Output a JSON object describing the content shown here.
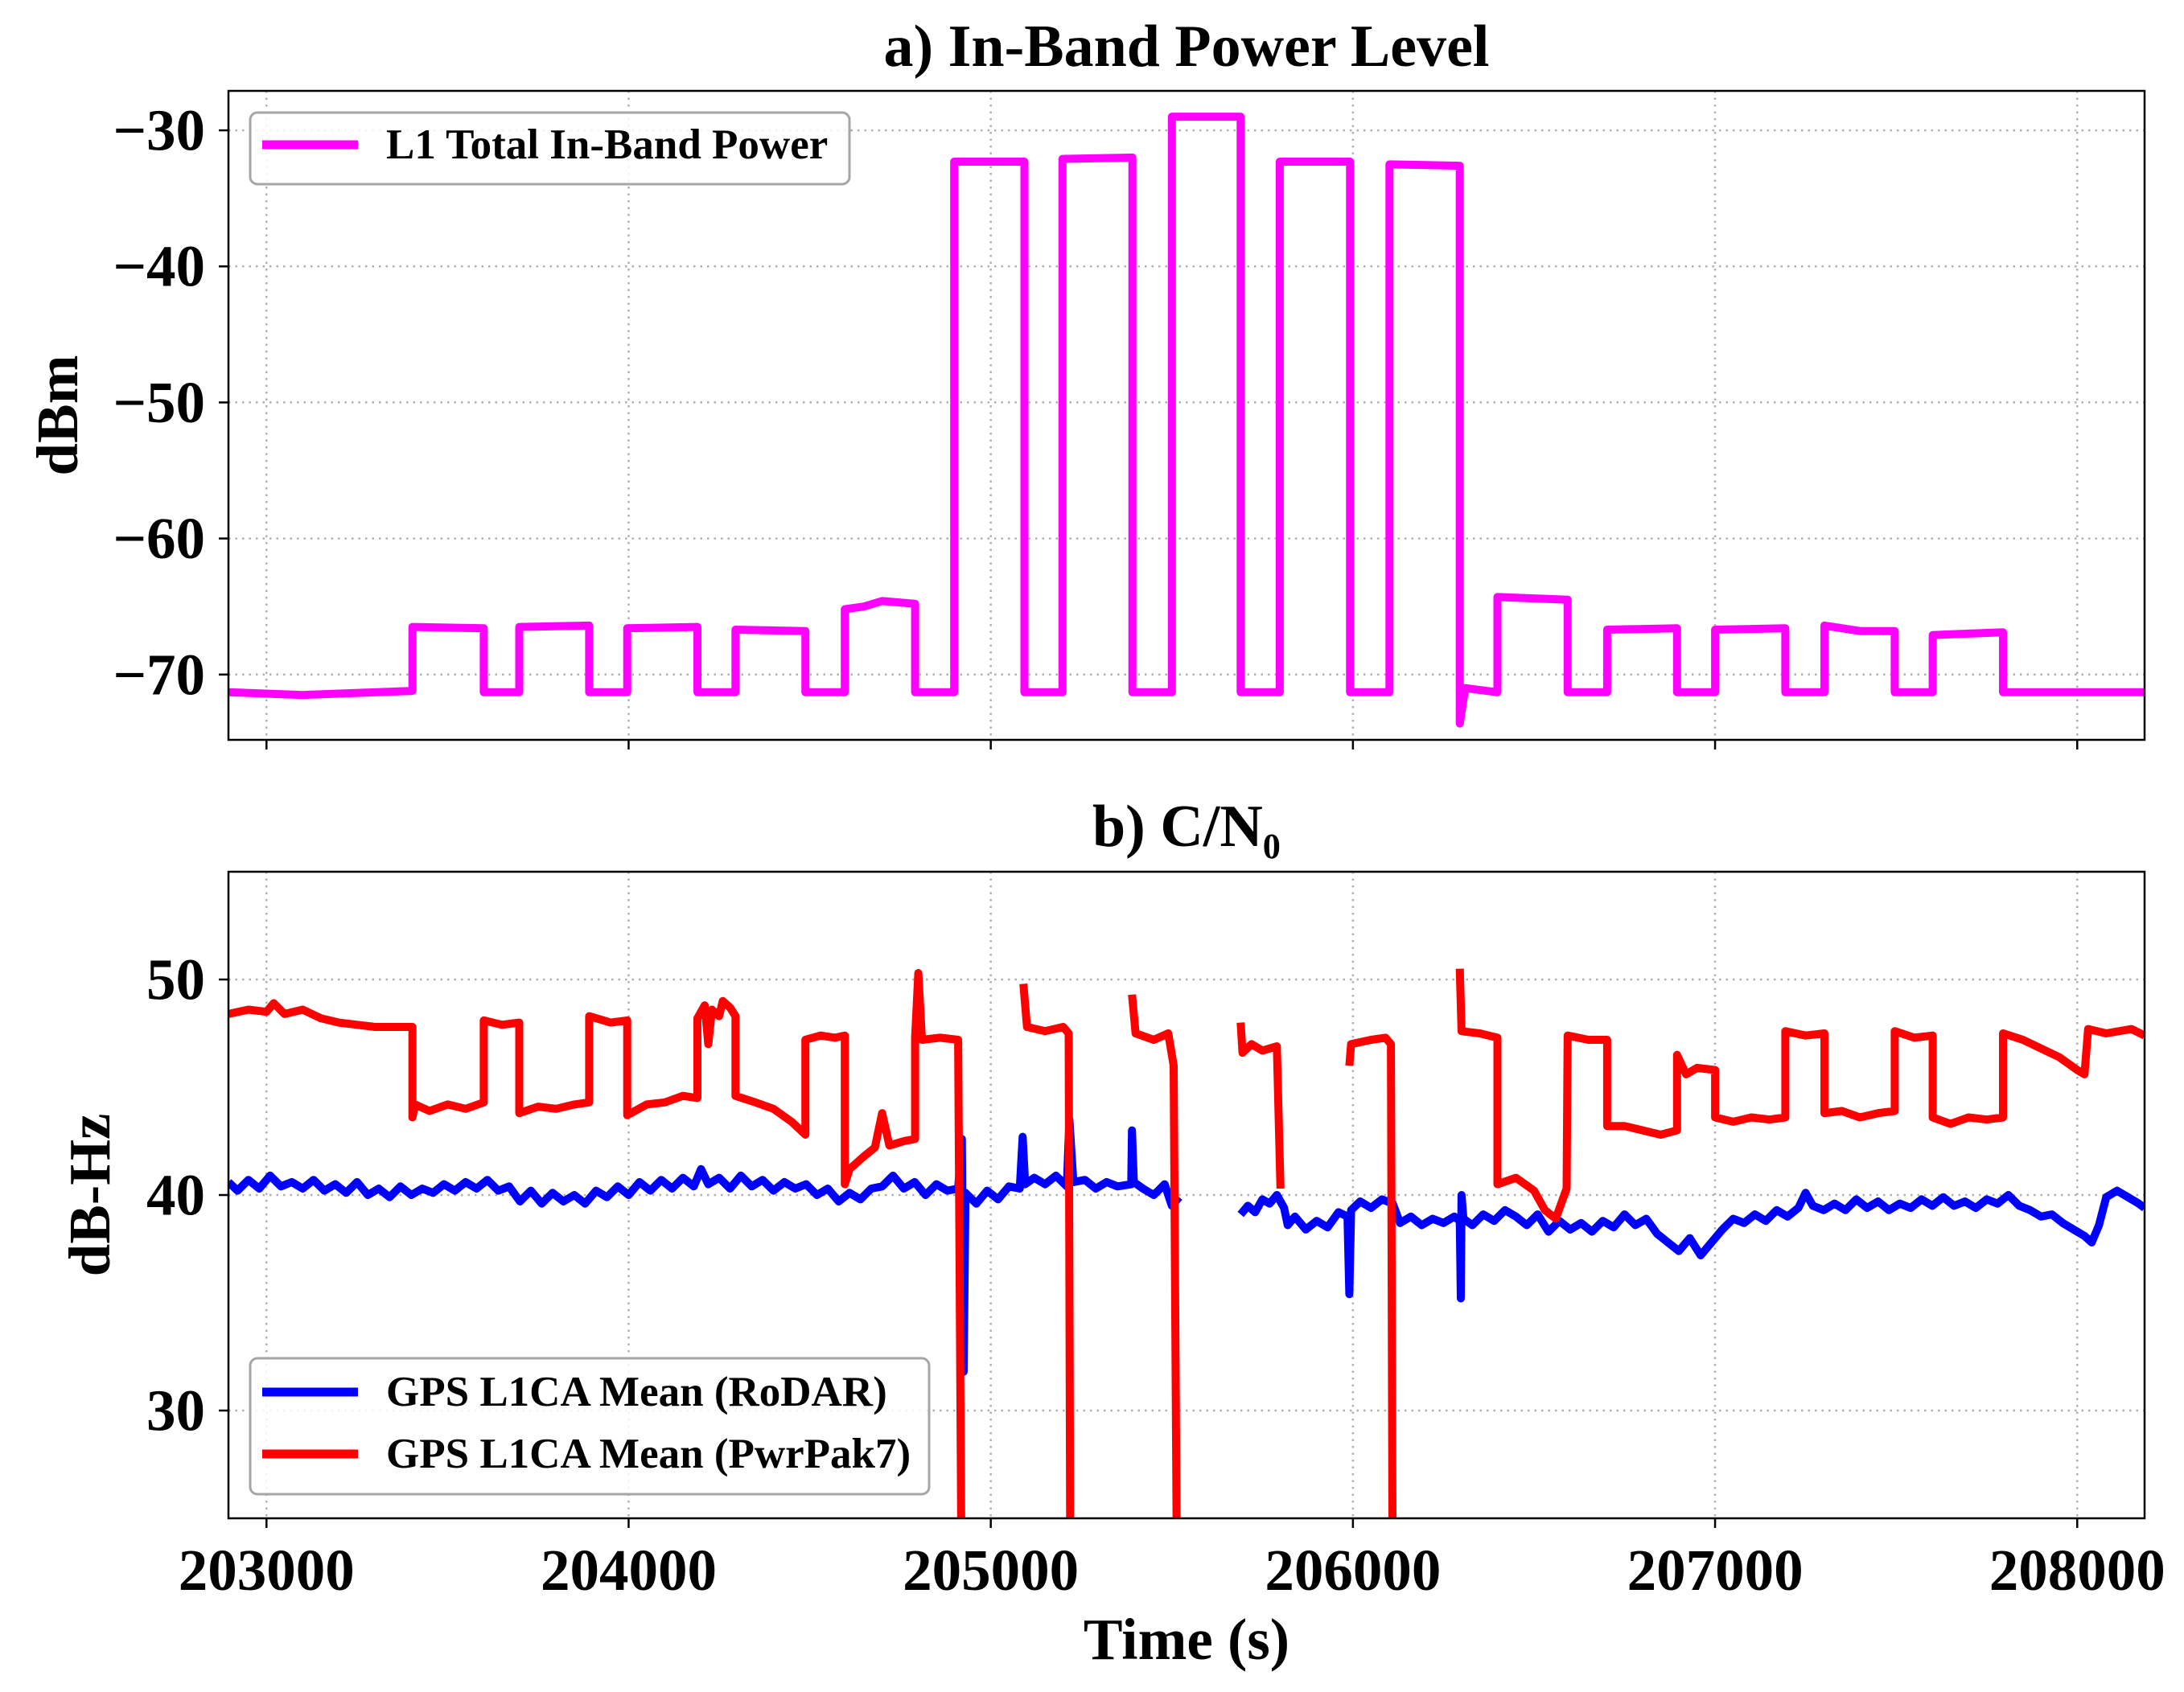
{
  "chart_data": [
    {
      "type": "line",
      "title": "a) In-Band Power Level",
      "xlabel": "",
      "ylabel": "dBm",
      "xlim": [
        202895,
        208186
      ],
      "ylim": [
        -74.8,
        -27.1
      ],
      "xticks": [
        203000,
        204000,
        205000,
        206000,
        207000,
        208000
      ],
      "xtick_labels": [],
      "yticks": [
        -30,
        -40,
        -50,
        -60,
        -70
      ],
      "ytick_labels": [
        "−30",
        "−40",
        "−50",
        "−60",
        "−70"
      ],
      "grid": true,
      "legend": "upper left",
      "series": [
        {
          "name": "L1 Total In-Band Power",
          "color": "#ff00ff",
          "x": [
            202895,
            203100,
            203403,
            203403,
            203600,
            203600,
            203698,
            203698,
            203891,
            203891,
            203996,
            203996,
            204190,
            204190,
            204295,
            204295,
            204488,
            204488,
            204597,
            204597,
            204650,
            204700,
            204791,
            204791,
            204899,
            204899,
            205093,
            205093,
            205198,
            205198,
            205391,
            205391,
            205500,
            205500,
            205690,
            205690,
            205798,
            205798,
            205992,
            205992,
            206101,
            206101,
            206295,
            206295,
            206310,
            206399,
            206399,
            206593,
            206593,
            206702,
            206702,
            206895,
            206895,
            207000,
            207000,
            207194,
            207194,
            207302,
            207302,
            207400,
            207496,
            207496,
            207601,
            207601,
            207795,
            207795,
            208186
          ],
          "y": [
            -71.3,
            -71.5,
            -71.2,
            -66.5,
            -66.6,
            -71.3,
            -71.3,
            -66.5,
            -66.4,
            -71.3,
            -71.3,
            -66.6,
            -66.5,
            -71.3,
            -71.3,
            -66.7,
            -66.8,
            -71.3,
            -71.3,
            -65.2,
            -65.0,
            -64.6,
            -64.8,
            -71.3,
            -71.3,
            -32.3,
            -32.3,
            -71.3,
            -71.3,
            -32.1,
            -32.0,
            -71.3,
            -71.3,
            -29.0,
            -29.0,
            -71.3,
            -71.3,
            -32.3,
            -32.3,
            -71.3,
            -71.3,
            -32.5,
            -32.6,
            -73.6,
            -71.0,
            -71.3,
            -64.3,
            -64.5,
            -71.3,
            -71.3,
            -66.7,
            -66.6,
            -71.3,
            -71.3,
            -66.7,
            -66.6,
            -71.3,
            -71.3,
            -66.4,
            -66.8,
            -66.8,
            -71.3,
            -71.3,
            -67.1,
            -66.9,
            -71.3,
            -71.3
          ]
        }
      ]
    },
    {
      "type": "line",
      "title": "b)  C/N₀",
      "xlabel": "Time (s)",
      "ylabel": "dB-Hz",
      "xlim": [
        202895,
        208186
      ],
      "ylim": [
        25,
        55
      ],
      "xticks": [
        203000,
        204000,
        205000,
        206000,
        207000,
        208000
      ],
      "xtick_labels": [
        "203000",
        "204000",
        "205000",
        "206000",
        "207000",
        "208000"
      ],
      "yticks": [
        30,
        40,
        50
      ],
      "ytick_labels": [
        "30",
        "40",
        "50"
      ],
      "grid": true,
      "legend": "lower left",
      "series": [
        {
          "name": "GPS L1CA Mean (RoDAR)",
          "color": "#0000ff",
          "x": [
            202895,
            202920,
            202950,
            202980,
            203010,
            203040,
            203070,
            203100,
            203130,
            203160,
            203190,
            203220,
            203250,
            203280,
            203310,
            203340,
            203370,
            203400,
            203430,
            203460,
            203490,
            203520,
            203550,
            203580,
            203610,
            203640,
            203670,
            203700,
            203730,
            203760,
            203790,
            203820,
            203850,
            203880,
            203910,
            203940,
            203970,
            204000,
            204030,
            204060,
            204090,
            204120,
            204150,
            204180,
            204200,
            204220,
            204250,
            204280,
            204310,
            204340,
            204370,
            204400,
            204430,
            204460,
            204490,
            204520,
            204550,
            204580,
            204610,
            204640,
            204670,
            204700,
            204730,
            204760,
            204790,
            204820,
            204850,
            204880,
            204910,
            204920,
            204925,
            204930,
            204960,
            204990,
            205020,
            205050,
            205080,
            205088,
            205095,
            205120,
            205150,
            205180,
            205210,
            205217,
            205228,
            205260,
            205290,
            205320,
            205350,
            205388,
            205390,
            205395,
            205420,
            205450,
            205480,
            205500,
            205520,
            null,
            205690,
            205710,
            205730,
            205750,
            205770,
            205790,
            205810,
            205820,
            205840,
            205870,
            205900,
            205930,
            205960,
            205985,
            205990,
            205995,
            206020,
            206050,
            206080,
            206110,
            206130,
            206160,
            206190,
            206220,
            206250,
            206280,
            206295,
            206298,
            206300,
            206305,
            206330,
            206360,
            206390,
            206420,
            206450,
            206480,
            206510,
            206540,
            206570,
            206600,
            206630,
            206660,
            206690,
            206720,
            206750,
            206780,
            206810,
            206840,
            206870,
            206900,
            206930,
            206960,
            206990,
            207020,
            207050,
            207080,
            207110,
            207140,
            207170,
            207200,
            207230,
            207250,
            207270,
            207300,
            207330,
            207360,
            207390,
            207420,
            207450,
            207480,
            207510,
            207540,
            207570,
            207600,
            207630,
            207660,
            207690,
            207720,
            207750,
            207780,
            207810,
            207840,
            207870,
            207900,
            207930,
            207960,
            207990,
            208020,
            208040,
            208060,
            208080,
            208110,
            208140,
            208170,
            208186
          ],
          "y": [
            40.6,
            40.2,
            40.7,
            40.3,
            40.9,
            40.4,
            40.6,
            40.3,
            40.7,
            40.2,
            40.5,
            40.1,
            40.6,
            40.0,
            40.3,
            39.9,
            40.4,
            40.0,
            40.3,
            40.1,
            40.5,
            40.2,
            40.6,
            40.3,
            40.7,
            40.2,
            40.4,
            39.7,
            40.2,
            39.6,
            40.1,
            39.7,
            40.0,
            39.6,
            40.2,
            39.9,
            40.4,
            40.0,
            40.6,
            40.2,
            40.7,
            40.3,
            40.8,
            40.4,
            41.2,
            40.5,
            40.8,
            40.3,
            40.9,
            40.4,
            40.7,
            40.2,
            40.6,
            40.3,
            40.5,
            40.0,
            40.3,
            39.7,
            40.1,
            39.8,
            40.3,
            40.4,
            40.9,
            40.3,
            40.6,
            40.0,
            40.5,
            40.2,
            40.3,
            42.6,
            31.8,
            40.1,
            39.6,
            40.2,
            39.8,
            40.4,
            40.3,
            42.7,
            40.5,
            40.8,
            40.5,
            40.9,
            40.4,
            43.5,
            40.6,
            40.7,
            40.3,
            40.6,
            40.4,
            40.5,
            43.0,
            40.6,
            40.3,
            40.0,
            40.5,
            39.5,
            39.9,
            null,
            39.1,
            39.5,
            39.2,
            39.8,
            39.6,
            40.0,
            39.4,
            38.6,
            39.0,
            38.4,
            38.8,
            38.5,
            39.2,
            39.0,
            35.4,
            39.3,
            39.7,
            39.4,
            39.8,
            39.6,
            38.7,
            39.0,
            38.6,
            38.9,
            38.7,
            39.0,
            38.8,
            35.2,
            40.0,
            38.9,
            38.6,
            39.1,
            38.8,
            39.3,
            39.0,
            38.6,
            39.1,
            38.3,
            38.8,
            38.4,
            38.7,
            38.3,
            38.8,
            38.5,
            39.1,
            38.6,
            38.9,
            38.2,
            37.8,
            37.4,
            38.0,
            37.2,
            37.8,
            38.4,
            38.9,
            38.7,
            39.1,
            38.8,
            39.3,
            39.0,
            39.4,
            40.1,
            39.5,
            39.3,
            39.6,
            39.3,
            39.8,
            39.4,
            39.7,
            39.3,
            39.6,
            39.4,
            39.8,
            39.5,
            39.9,
            39.5,
            39.7,
            39.4,
            39.8,
            39.6,
            40.0,
            39.5,
            39.3,
            39.0,
            39.1,
            38.7,
            38.4,
            38.1,
            37.8,
            38.6,
            39.9,
            40.2,
            39.9,
            39.6,
            39.4
          ]
        },
        {
          "name": "GPS L1CA Mean (PwrPak7)",
          "color": "#ff0000",
          "x": [
            202895,
            202950,
            203000,
            203020,
            203050,
            203100,
            203150,
            203200,
            203250,
            203300,
            203350,
            203403,
            203403,
            203410,
            203450,
            203500,
            203550,
            203600,
            203600,
            203650,
            203698,
            203698,
            203750,
            203800,
            203850,
            203891,
            203891,
            203950,
            203996,
            203996,
            204050,
            204100,
            204150,
            204190,
            204190,
            204210,
            204220,
            204230,
            204250,
            204260,
            204280,
            204295,
            204295,
            204350,
            204400,
            204450,
            204488,
            204488,
            204530,
            204570,
            204597,
            204597,
            204610,
            204650,
            204680,
            204700,
            204720,
            204760,
            204791,
            204791,
            204800,
            204810,
            204860,
            204910,
            204920,
            null,
            205090,
            205100,
            205150,
            205200,
            205215,
            205220,
            null,
            205390,
            205400,
            205450,
            205490,
            205505,
            205515,
            null,
            205690,
            205695,
            205720,
            205750,
            205790,
            205800,
            null,
            205990,
            205995,
            206050,
            206090,
            206105,
            206110,
            null,
            206295,
            206300,
            206350,
            206399,
            206399,
            206450,
            206500,
            206530,
            206560,
            206590,
            206593,
            206650,
            206702,
            206702,
            206750,
            206800,
            206850,
            206895,
            206895,
            206920,
            206950,
            207000,
            207000,
            207050,
            207100,
            207150,
            207194,
            207194,
            207250,
            207302,
            207302,
            207350,
            207400,
            207450,
            207496,
            207496,
            207550,
            207601,
            207601,
            207650,
            207700,
            207750,
            207795,
            207795,
            207850,
            207900,
            207950,
            208000,
            208020,
            208030,
            208080,
            208150,
            208186
          ],
          "y": [
            48.4,
            48.6,
            48.5,
            48.9,
            48.4,
            48.6,
            48.2,
            48.0,
            47.9,
            47.8,
            47.8,
            47.8,
            43.6,
            44.2,
            43.9,
            44.2,
            44.0,
            44.3,
            48.1,
            47.9,
            48.0,
            43.8,
            44.1,
            44.0,
            44.2,
            44.3,
            48.3,
            48.0,
            48.1,
            43.7,
            44.2,
            44.3,
            44.6,
            44.5,
            48.2,
            48.8,
            47.0,
            48.6,
            48.3,
            49.0,
            48.7,
            48.3,
            44.6,
            44.3,
            44.0,
            43.4,
            42.8,
            47.2,
            47.4,
            47.3,
            47.4,
            40.5,
            41.2,
            41.8,
            42.2,
            43.8,
            42.3,
            42.5,
            42.6,
            47.3,
            50.3,
            47.2,
            47.3,
            47.2,
            20,
            null,
            49.8,
            47.8,
            47.6,
            47.8,
            47.5,
            20,
            null,
            49.3,
            47.5,
            47.2,
            47.5,
            46.0,
            20,
            null,
            48.0,
            46.6,
            47.0,
            46.7,
            46.9,
            40.3,
            null,
            46.0,
            47.0,
            47.2,
            47.3,
            47.0,
            20,
            null,
            50.5,
            47.6,
            47.5,
            47.3,
            40.5,
            40.8,
            40.2,
            39.3,
            38.9,
            40.3,
            47.4,
            47.2,
            47.2,
            43.2,
            43.2,
            43.0,
            42.8,
            43.0,
            46.5,
            45.6,
            45.9,
            45.8,
            43.6,
            43.4,
            43.6,
            43.5,
            43.6,
            47.6,
            47.4,
            47.5,
            43.8,
            43.9,
            43.6,
            43.8,
            43.9,
            47.6,
            47.3,
            47.4,
            43.6,
            43.3,
            43.6,
            43.5,
            43.6,
            47.5,
            47.2,
            46.8,
            46.4,
            45.8,
            45.6,
            47.7,
            47.5,
            47.7,
            47.4
          ]
        }
      ]
    }
  ]
}
